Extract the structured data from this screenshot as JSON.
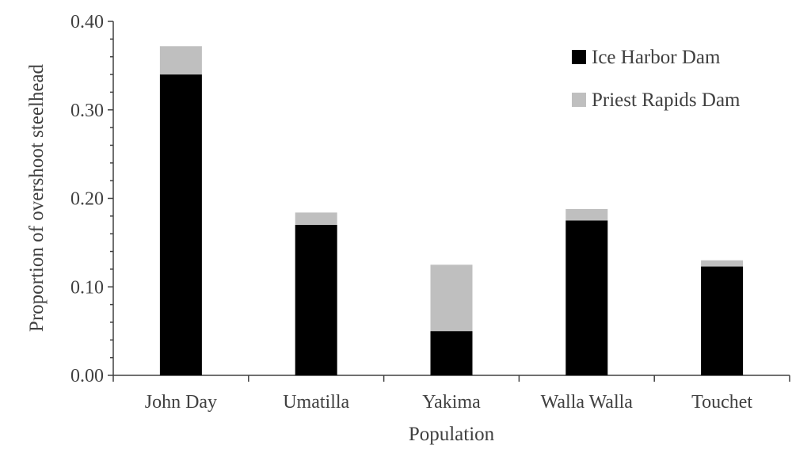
{
  "chart_data": {
    "type": "bar",
    "stacked": true,
    "categories": [
      "John Day",
      "Umatilla",
      "Yakima",
      "Walla Walla",
      "Touchet"
    ],
    "series": [
      {
        "name": "Ice Harbor Dam",
        "values": [
          0.34,
          0.17,
          0.05,
          0.175,
          0.123
        ],
        "color": "#000000"
      },
      {
        "name": "Priest Rapids Dam",
        "values": [
          0.032,
          0.014,
          0.075,
          0.013,
          0.007
        ],
        "color": "#bfbfbf"
      }
    ],
    "title": "",
    "xlabel": "Population",
    "ylabel": "Proportion of overshoot steelhead",
    "ylim": [
      0,
      0.4
    ],
    "yticks": [
      "0.00",
      "0.10",
      "0.20",
      "0.30",
      "0.40"
    ],
    "grid": false,
    "legend_position": "top-right"
  }
}
